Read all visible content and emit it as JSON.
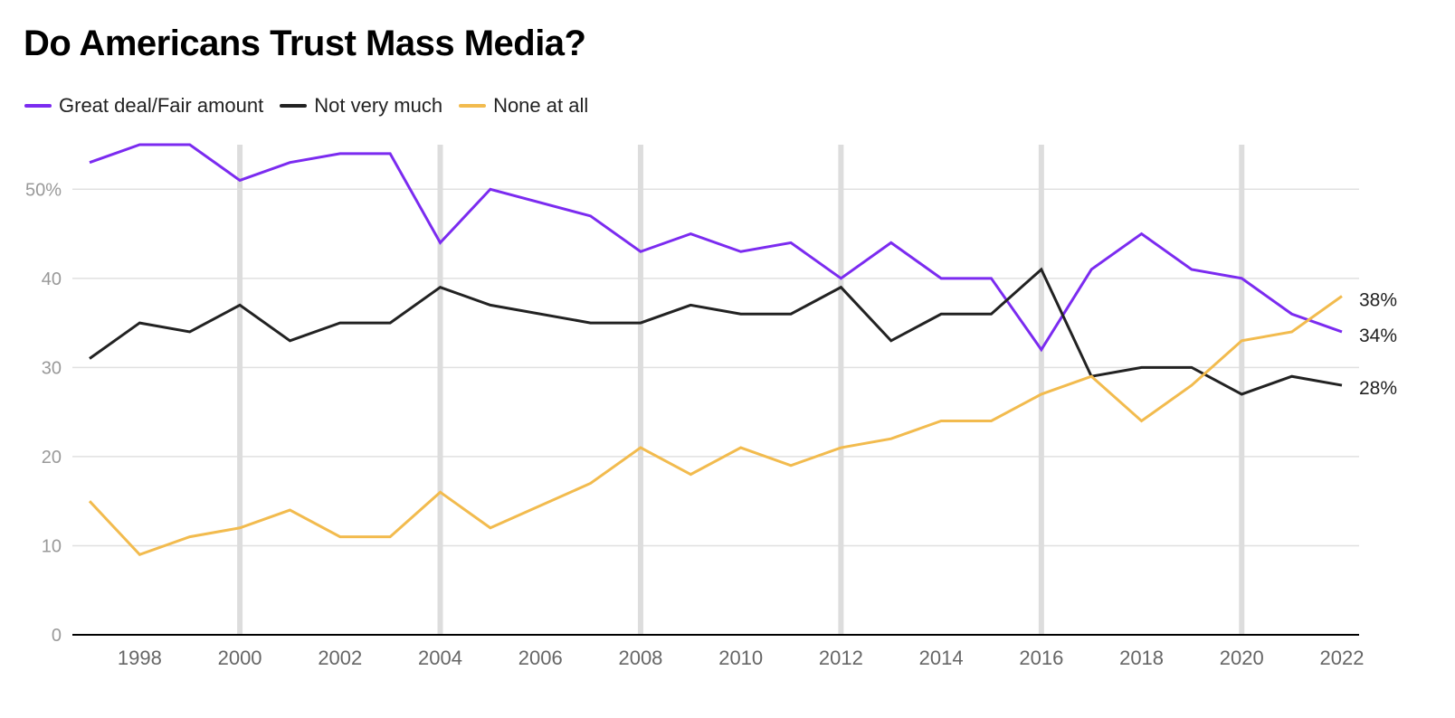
{
  "title": "Do Americans Trust Mass Media?",
  "colors": {
    "great": "#7B2BF0",
    "not_very": "#222222",
    "none": "#F2BB4E",
    "grid": "#E0E0E0",
    "highlight_grid": "#DDDDDD",
    "axis": "#000000"
  },
  "legend": [
    {
      "label": "Great deal/Fair amount",
      "color": "#7B2BF0"
    },
    {
      "label": "Not very much",
      "color": "#222222"
    },
    {
      "label": "None at all",
      "color": "#F2BB4E"
    }
  ],
  "chart_data": {
    "type": "line",
    "title": "Do Americans Trust Mass Media?",
    "xlabel": "",
    "ylabel": "",
    "x": [
      1997,
      1998,
      1999,
      2000,
      2001,
      2002,
      2003,
      2004,
      2005,
      2007,
      2008,
      2009,
      2010,
      2011,
      2012,
      2013,
      2014,
      2015,
      2016,
      2017,
      2018,
      2019,
      2020,
      2021,
      2022
    ],
    "xlim": [
      1997,
      2022
    ],
    "ylim": [
      0,
      55
    ],
    "x_ticks": [
      1998,
      2000,
      2002,
      2004,
      2006,
      2008,
      2010,
      2012,
      2014,
      2016,
      2018,
      2020,
      2022
    ],
    "x_tick_labels": [
      "1998",
      "2000",
      "2002",
      "2004",
      "2006",
      "2008",
      "2010",
      "2012",
      "2014",
      "2016",
      "2018",
      "2020",
      "2022"
    ],
    "y_ticks": [
      0,
      10,
      20,
      30,
      40,
      50
    ],
    "y_tick_labels": [
      "0",
      "10",
      "20",
      "30",
      "40",
      "50%"
    ],
    "highlight_years": [
      2000,
      2004,
      2008,
      2012,
      2016,
      2020
    ],
    "legend_position": "top-left",
    "series": [
      {
        "name": "Great deal/Fair amount",
        "color": "#7B2BF0",
        "values": [
          53,
          55,
          55,
          51,
          53,
          54,
          54,
          44,
          50,
          47,
          43,
          45,
          43,
          44,
          40,
          44,
          40,
          40,
          32,
          41,
          45,
          41,
          40,
          36,
          34
        ],
        "end_label": "34%"
      },
      {
        "name": "Not very much",
        "color": "#222222",
        "values": [
          31,
          35,
          34,
          37,
          33,
          35,
          35,
          39,
          37,
          35,
          35,
          37,
          36,
          36,
          39,
          33,
          36,
          36,
          41,
          29,
          30,
          30,
          27,
          29,
          28
        ],
        "end_label": "28%"
      },
      {
        "name": "None at all",
        "color": "#F2BB4E",
        "values": [
          15,
          9,
          11,
          12,
          14,
          11,
          11,
          16,
          12,
          17,
          21,
          18,
          21,
          19,
          21,
          22,
          24,
          24,
          27,
          29,
          24,
          28,
          33,
          34,
          38
        ],
        "end_label": "38%"
      }
    ]
  }
}
